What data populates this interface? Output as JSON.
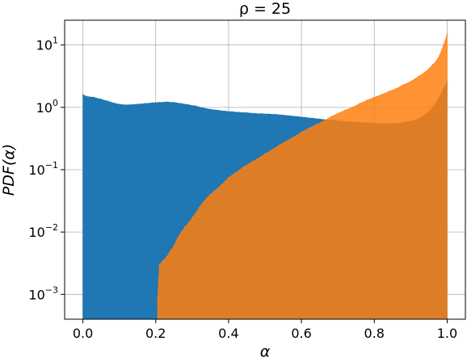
{
  "chart_data": {
    "type": "histogram",
    "title": "ρ = 25",
    "xlabel": "α",
    "ylabel": "PDF(α)",
    "xlim": [
      -0.05,
      1.05
    ],
    "ylim": [
      0.0004,
      25
    ],
    "yscale": "log",
    "grid": true,
    "x_ticks": [
      {
        "value": 0.0,
        "label": "0.0"
      },
      {
        "value": 0.2,
        "label": "0.2"
      },
      {
        "value": 0.4,
        "label": "0.4"
      },
      {
        "value": 0.6,
        "label": "0.6"
      },
      {
        "value": 0.8,
        "label": "0.8"
      },
      {
        "value": 1.0,
        "label": "1.0"
      }
    ],
    "y_ticks": [
      {
        "value": 0.001,
        "base": "10",
        "exp": "−3"
      },
      {
        "value": 0.01,
        "base": "10",
        "exp": "−2"
      },
      {
        "value": 0.1,
        "base": "10",
        "exp": "−1"
      },
      {
        "value": 1,
        "base": "10",
        "exp": "0"
      },
      {
        "value": 10,
        "base": "10",
        "exp": "1"
      }
    ],
    "series": [
      {
        "color": "#1f77b4",
        "points": [
          [
            0.0,
            1.6
          ],
          [
            0.01,
            1.5
          ],
          [
            0.03,
            1.45
          ],
          [
            0.05,
            1.35
          ],
          [
            0.07,
            1.25
          ],
          [
            0.09,
            1.15
          ],
          [
            0.11,
            1.1
          ],
          [
            0.13,
            1.1
          ],
          [
            0.15,
            1.12
          ],
          [
            0.17,
            1.15
          ],
          [
            0.19,
            1.18
          ],
          [
            0.21,
            1.2
          ],
          [
            0.23,
            1.22
          ],
          [
            0.25,
            1.2
          ],
          [
            0.27,
            1.15
          ],
          [
            0.29,
            1.1
          ],
          [
            0.31,
            1.05
          ],
          [
            0.33,
            0.98
          ],
          [
            0.35,
            0.93
          ],
          [
            0.37,
            0.9
          ],
          [
            0.39,
            0.87
          ],
          [
            0.41,
            0.85
          ],
          [
            0.43,
            0.83
          ],
          [
            0.45,
            0.82
          ],
          [
            0.47,
            0.8
          ],
          [
            0.49,
            0.79
          ],
          [
            0.51,
            0.78
          ],
          [
            0.53,
            0.77
          ],
          [
            0.55,
            0.75
          ],
          [
            0.57,
            0.73
          ],
          [
            0.59,
            0.71
          ],
          [
            0.61,
            0.69
          ],
          [
            0.63,
            0.67
          ],
          [
            0.65,
            0.65
          ],
          [
            0.67,
            0.63
          ],
          [
            0.69,
            0.62
          ],
          [
            0.71,
            0.6
          ],
          [
            0.73,
            0.59
          ],
          [
            0.75,
            0.58
          ],
          [
            0.77,
            0.57
          ],
          [
            0.79,
            0.56
          ],
          [
            0.81,
            0.55
          ],
          [
            0.83,
            0.55
          ],
          [
            0.85,
            0.55
          ],
          [
            0.87,
            0.56
          ],
          [
            0.89,
            0.58
          ],
          [
            0.91,
            0.62
          ],
          [
            0.93,
            0.7
          ],
          [
            0.95,
            0.85
          ],
          [
            0.97,
            1.2
          ],
          [
            0.99,
            2.0
          ],
          [
            1.0,
            2.5
          ]
        ]
      },
      {
        "color": "#ff7f0e",
        "points": [
          [
            0.205,
            0.0008
          ],
          [
            0.21,
            0.003
          ],
          [
            0.22,
            0.0035
          ],
          [
            0.23,
            0.004
          ],
          [
            0.24,
            0.005
          ],
          [
            0.25,
            0.006
          ],
          [
            0.26,
            0.008
          ],
          [
            0.27,
            0.01
          ],
          [
            0.28,
            0.012
          ],
          [
            0.29,
            0.014
          ],
          [
            0.3,
            0.017
          ],
          [
            0.31,
            0.02
          ],
          [
            0.32,
            0.025
          ],
          [
            0.33,
            0.03
          ],
          [
            0.34,
            0.035
          ],
          [
            0.35,
            0.04
          ],
          [
            0.36,
            0.045
          ],
          [
            0.37,
            0.05
          ],
          [
            0.38,
            0.057
          ],
          [
            0.39,
            0.065
          ],
          [
            0.4,
            0.075
          ],
          [
            0.42,
            0.09
          ],
          [
            0.44,
            0.11
          ],
          [
            0.46,
            0.13
          ],
          [
            0.48,
            0.15
          ],
          [
            0.5,
            0.18
          ],
          [
            0.52,
            0.21
          ],
          [
            0.54,
            0.25
          ],
          [
            0.56,
            0.29
          ],
          [
            0.58,
            0.34
          ],
          [
            0.6,
            0.4
          ],
          [
            0.62,
            0.46
          ],
          [
            0.64,
            0.53
          ],
          [
            0.66,
            0.6
          ],
          [
            0.68,
            0.7
          ],
          [
            0.7,
            0.8
          ],
          [
            0.72,
            0.9
          ],
          [
            0.74,
            1.0
          ],
          [
            0.76,
            1.15
          ],
          [
            0.78,
            1.3
          ],
          [
            0.8,
            1.45
          ],
          [
            0.82,
            1.6
          ],
          [
            0.84,
            1.8
          ],
          [
            0.86,
            2.0
          ],
          [
            0.88,
            2.3
          ],
          [
            0.9,
            2.6
          ],
          [
            0.92,
            3.1
          ],
          [
            0.94,
            3.7
          ],
          [
            0.96,
            4.8
          ],
          [
            0.97,
            5.5
          ],
          [
            0.98,
            7.0
          ],
          [
            0.99,
            10.0
          ],
          [
            1.0,
            15.0
          ]
        ]
      }
    ]
  }
}
